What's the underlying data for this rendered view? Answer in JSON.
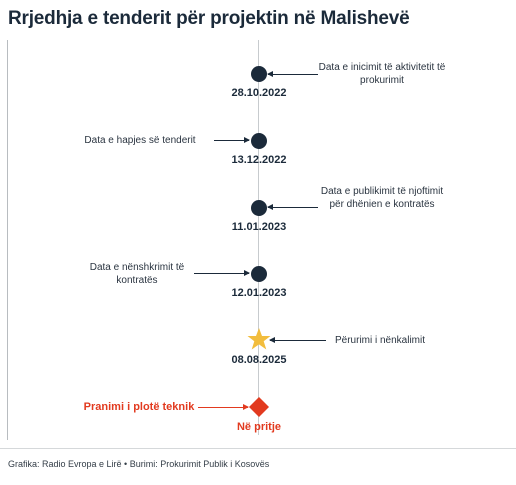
{
  "title": "Rrjedhja e tenderit për projektin në Malishevë",
  "events": [
    {
      "date": "28.10.2022",
      "label": "Data e inicimit të aktivitetit të prokurimit",
      "marker": "circle"
    },
    {
      "date": "13.12.2022",
      "label": "Data e hapjes së tenderit",
      "marker": "circle"
    },
    {
      "date": "11.01.2023",
      "label": "Data e publikimit të njoftimit për dhënien e kontratës",
      "marker": "circle"
    },
    {
      "date": "12.01.2023",
      "label": "Data e nënshkrimit të kontratës",
      "marker": "circle"
    },
    {
      "date": "08.08.2025",
      "label": "Përurimi i nënkalimit",
      "marker": "star"
    },
    {
      "date": "Në pritje",
      "label": "Pranimi i plotë teknik",
      "marker": "diamond"
    }
  ],
  "colors": {
    "marker": "#1b2a3a",
    "star": "#f2bd3d",
    "pending": "#e23a1f"
  },
  "caption": "Grafika: Radio Evropa e Lirë • Burimi: Prokurimit Publik i Kosovës"
}
